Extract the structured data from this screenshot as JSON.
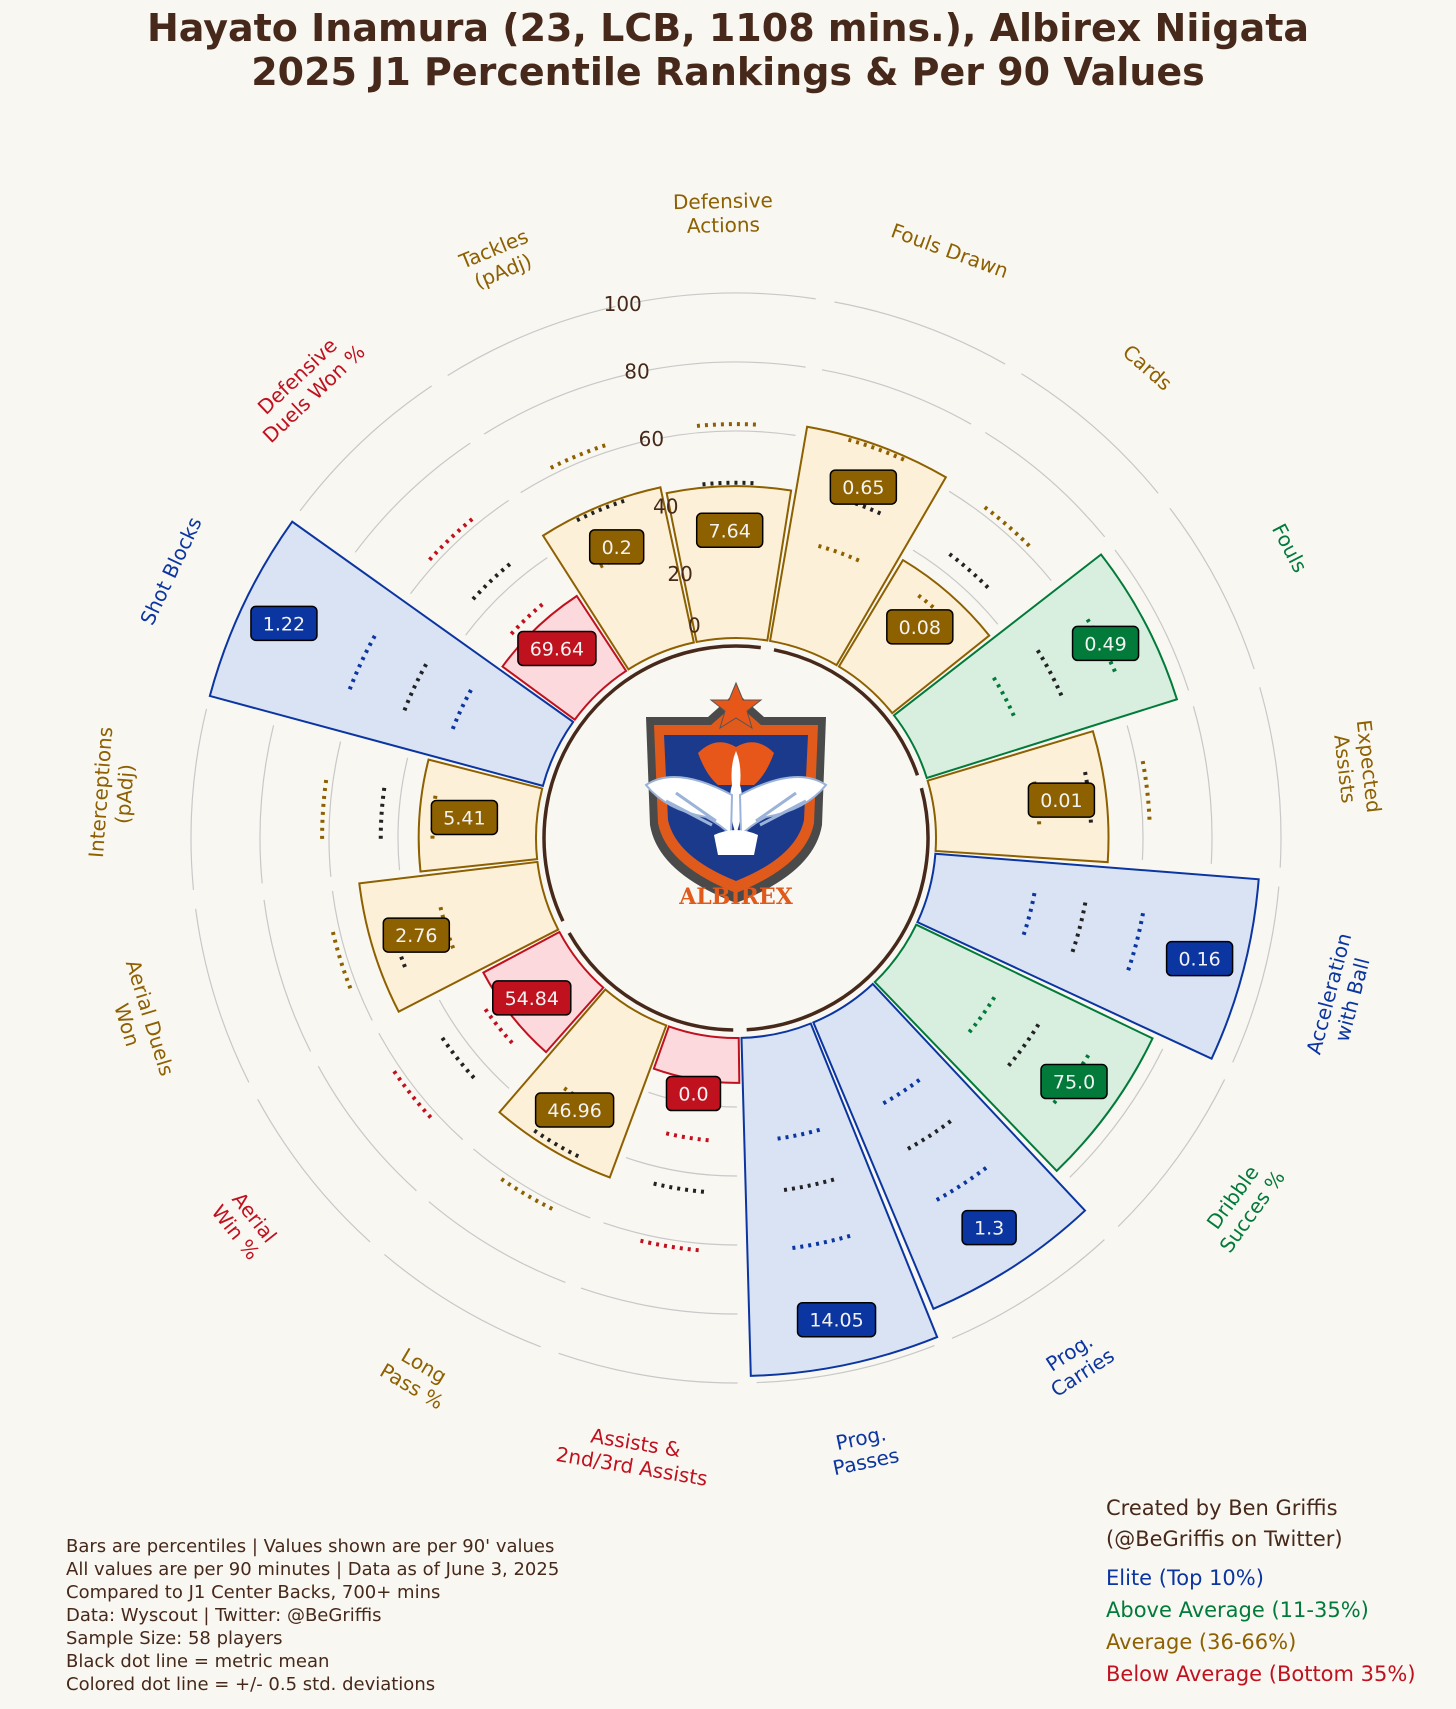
{
  "title": {
    "line1": "Hayato Inamura (23, LCB, 1108 mins.), Albirex Niigata",
    "line2": "2025 J1 Percentile Rankings & Per 90 Values"
  },
  "logo": {
    "label": "ALBIREX",
    "icon": "albirex-niigata-crest-icon"
  },
  "colors": {
    "elite": "#0b35a0",
    "above": "#017a3a",
    "average": "#8d6000",
    "below": "#c0111f",
    "text": "#46291a",
    "background": "#f9f7f2"
  },
  "chart_data": {
    "type": "polar-bar",
    "radial_ticks": [
      "0",
      "20",
      "40",
      "60",
      "80",
      "100"
    ],
    "rlim": [
      0,
      100
    ],
    "metrics": [
      {
        "label": [
          "Fouls Drawn"
        ],
        "value": "0.65",
        "percentile": 63,
        "tier": "average"
      },
      {
        "label": [
          "Cards"
        ],
        "value": "0.08",
        "percentile": 36,
        "tier": "average"
      },
      {
        "label": [
          "Fouls"
        ],
        "value": "0.49",
        "percentile": 76,
        "tier": "above"
      },
      {
        "label": [
          "Expected",
          "Assists"
        ],
        "value": "0.01",
        "percentile": 50,
        "tier": "average"
      },
      {
        "label": [
          "Acceleration",
          "with Ball"
        ],
        "value": "0.16",
        "percentile": 94,
        "tier": "elite"
      },
      {
        "label": [
          "Dribble",
          "Succes %"
        ],
        "value": "75.0",
        "percentile": 76,
        "tier": "above"
      },
      {
        "label": [
          "Prog.",
          "Carries"
        ],
        "value": "1.3",
        "percentile": 90,
        "tier": "elite"
      },
      {
        "label": [
          "Prog.",
          "Passes"
        ],
        "value": "14.05",
        "percentile": 98,
        "tier": "elite"
      },
      {
        "label": [
          "Assists &",
          "2nd/3rd Assists"
        ],
        "value": "0.0",
        "percentile": 13,
        "tier": "below"
      },
      {
        "label": [
          "Long",
          "Pass %"
        ],
        "value": "46.96",
        "percentile": 47,
        "tier": "average"
      },
      {
        "label": [
          "Aerial",
          "Win %"
        ],
        "value": "54.84",
        "percentile": 25,
        "tier": "below"
      },
      {
        "label": [
          "Aerial Duels",
          "Won"
        ],
        "value": "2.76",
        "percentile": 52,
        "tier": "average"
      },
      {
        "label": [
          "Interceptions",
          "(pAdj)"
        ],
        "value": "5.41",
        "percentile": 34,
        "tier": "average"
      },
      {
        "label": [
          "Shot Blocks"
        ],
        "value": "1.22",
        "percentile": 100,
        "tier": "elite"
      },
      {
        "label": [
          "Defensive",
          "Duels Won %"
        ],
        "value": "69.64",
        "percentile": 26,
        "tier": "below"
      },
      {
        "label": [
          "Tackles",
          "(pAdj)"
        ],
        "value": "0.2",
        "percentile": 46,
        "tier": "average"
      },
      {
        "label": [
          "Defensive",
          "Actions"
        ],
        "value": "7.64",
        "percentile": 44,
        "tier": "average"
      }
    ]
  },
  "notes": [
    "Bars are percentiles | Values shown are per 90' values",
    "All values are per 90 minutes | Data as of June 3, 2025",
    "Compared to J1 Center Backs, 700+ mins",
    "Data: Wyscout | Twitter: @BeGriffis",
    "Sample Size: 58 players",
    "Black dot line = metric mean",
    "Colored dot line = +/- 0.5 std. deviations"
  ],
  "credit": [
    "Created by Ben Griffis",
    "(@BeGriffis on Twitter)"
  ],
  "legend": [
    {
      "label": "Elite (Top 10%)",
      "tier": "elite"
    },
    {
      "label": "Above Average (11-35%)",
      "tier": "above"
    },
    {
      "label": "Average (36-66%)",
      "tier": "average"
    },
    {
      "label": "Below Average (Bottom 35%)",
      "tier": "below"
    }
  ]
}
